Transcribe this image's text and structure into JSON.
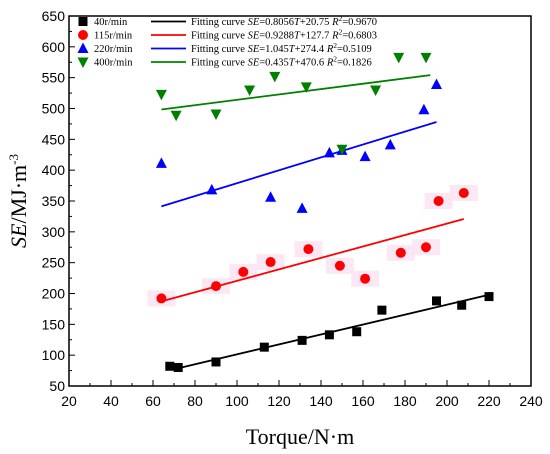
{
  "chart_data": {
    "type": "scatter",
    "xlabel": "Torque/N·m",
    "ylabel_main": "SE",
    "ylabel_unit": "/MJ·m",
    "ylabel_exp": "-3",
    "xlim": [
      20,
      240
    ],
    "ylim": [
      50,
      650
    ],
    "xticks": [
      20,
      40,
      60,
      80,
      100,
      120,
      140,
      160,
      180,
      200,
      220,
      240
    ],
    "yticks": [
      50,
      100,
      150,
      200,
      250,
      300,
      350,
      400,
      450,
      500,
      550,
      600,
      650
    ],
    "grid": false,
    "legend_position": "top-left",
    "series": [
      {
        "name": "40r/min",
        "color": "#000000",
        "marker": "square",
        "points": [
          [
            68,
            82
          ],
          [
            72,
            80
          ],
          [
            90,
            89
          ],
          [
            113,
            113
          ],
          [
            131,
            124
          ],
          [
            144,
            133
          ],
          [
            157,
            138
          ],
          [
            169,
            173
          ],
          [
            195,
            188
          ],
          [
            207,
            181
          ],
          [
            220,
            195
          ]
        ],
        "fit": {
          "label": "Fitting curve",
          "eq_prefix": "SE",
          "eq_body": "=0.8056T+20.75",
          "r2_label": "R",
          "r2_value": "=0.9670",
          "x_range": [
            70,
            220
          ],
          "slope": 0.8056,
          "intercept": 20.75
        }
      },
      {
        "name": "115r/min",
        "color": "#ff0000",
        "marker": "circle",
        "points": [
          [
            64,
            192
          ],
          [
            90,
            212
          ],
          [
            103,
            235
          ],
          [
            116,
            251
          ],
          [
            134,
            272
          ],
          [
            149,
            245
          ],
          [
            161,
            224
          ],
          [
            178,
            266
          ],
          [
            190,
            275
          ],
          [
            196,
            350
          ],
          [
            208,
            363
          ]
        ],
        "fit": {
          "label": "Fitting curve",
          "eq_prefix": "SE",
          "eq_body": "=0.9288T+127.7",
          "r2_label": "R",
          "r2_value": "=0.6803",
          "x_range": [
            64,
            208
          ],
          "slope": 0.9288,
          "intercept": 127.7
        }
      },
      {
        "name": "220r/min",
        "color": "#0000ff",
        "marker": "triangle-up",
        "points": [
          [
            64,
            411
          ],
          [
            88,
            368
          ],
          [
            116,
            356
          ],
          [
            131,
            338
          ],
          [
            144,
            428
          ],
          [
            150,
            432
          ],
          [
            161,
            422
          ],
          [
            173,
            441
          ],
          [
            189,
            498
          ],
          [
            195,
            539
          ]
        ],
        "fit": {
          "label": "Fitting curve",
          "eq_prefix": "SE",
          "eq_body": "=1.045T+274.4",
          "r2_label": "R",
          "r2_value": "=0.5109",
          "x_range": [
            64,
            195
          ],
          "slope": 1.045,
          "intercept": 274.4
        }
      },
      {
        "name": "400r/min",
        "color": "#008000",
        "marker": "triangle-down",
        "points": [
          [
            64,
            523
          ],
          [
            71,
            489
          ],
          [
            90,
            491
          ],
          [
            106,
            530
          ],
          [
            118,
            552
          ],
          [
            133,
            535
          ],
          [
            150,
            434
          ],
          [
            166,
            530
          ],
          [
            177,
            583
          ],
          [
            190,
            583
          ]
        ],
        "fit": {
          "label": "Fitting curve",
          "eq_prefix": "SE",
          "eq_body": "=0.435T+470.6",
          "r2_label": "R",
          "r2_value": "=0.1826",
          "x_range": [
            64,
            192
          ],
          "slope": 0.435,
          "intercept": 470.6
        }
      }
    ]
  }
}
